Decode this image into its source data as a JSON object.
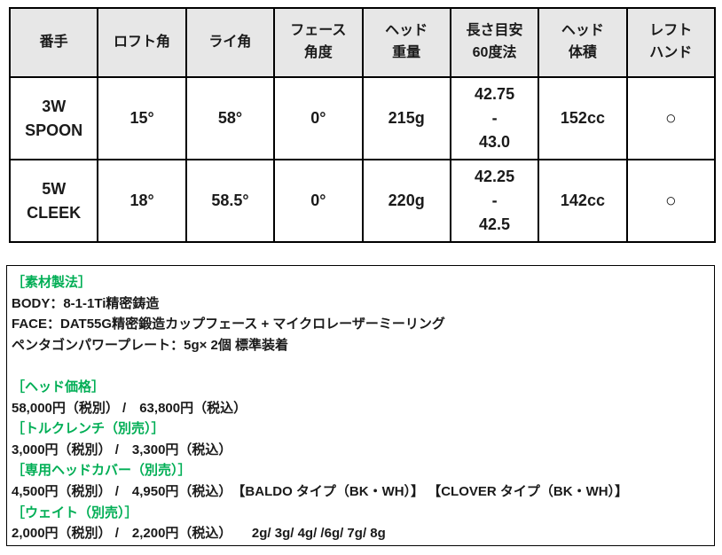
{
  "colors": {
    "accent_green": "#00ae55",
    "table_header_bg": "#e7e7e7",
    "border_black": "#000000"
  },
  "spec_table": {
    "headers": [
      "番手",
      "ロフト角",
      "ライ角",
      "フェース\n角度",
      "ヘッド\n重量",
      "長さ目安\n60度法",
      "ヘッド\n体積",
      "レフト\nハンド"
    ],
    "rows": [
      {
        "club": "3W\nSPOON",
        "loft": "15°",
        "lie": "58°",
        "face_angle": "0°",
        "head_weight": "215g",
        "length": "42.75\n-\n43.0",
        "head_volume": "152cc",
        "left_hand": "○"
      },
      {
        "club": "5W\nCLEEK",
        "loft": "18°",
        "lie": "58.5°",
        "face_angle": "0°",
        "head_weight": "220g",
        "length": "42.25\n-\n42.5",
        "head_volume": "142cc",
        "left_hand": "○"
      }
    ]
  },
  "info_box": {
    "lines": [
      {
        "style": "heading",
        "text": "［素材製法］"
      },
      {
        "style": "text",
        "text": "BODY：8-1-1Ti精密鋳造"
      },
      {
        "style": "text",
        "text": "FACE：DAT55G精密鍛造カップフェース + マイクロレーザーミーリング"
      },
      {
        "style": "text",
        "text": "ペンタゴンパワープレート：5g× 2個 標準装着"
      },
      {
        "style": "spacer",
        "text": ""
      },
      {
        "style": "heading",
        "text": "［ヘッド価格］"
      },
      {
        "style": "text",
        "text": "58,000円（税別） /　63,800円（税込）"
      },
      {
        "style": "heading",
        "text": "［トルクレンチ（別売）］"
      },
      {
        "style": "text",
        "text": "3,000円（税別） /　3,300円（税込）"
      },
      {
        "style": "heading",
        "text": "［専用ヘッドカバー（別売）］"
      },
      {
        "style": "text",
        "text": "4,500円（税別） /　4,950円（税込）　【BALDO タイプ（BK・WH）】 【CLOVER タイプ（BK・WH）】"
      },
      {
        "style": "heading",
        "text": "［ウェイト（別売）］"
      },
      {
        "style": "text",
        "text": "2,000円（税別） /　2,200円（税込）　　2g/ 3g/ 4g/ /6g/ 7g/ 8g"
      }
    ]
  }
}
